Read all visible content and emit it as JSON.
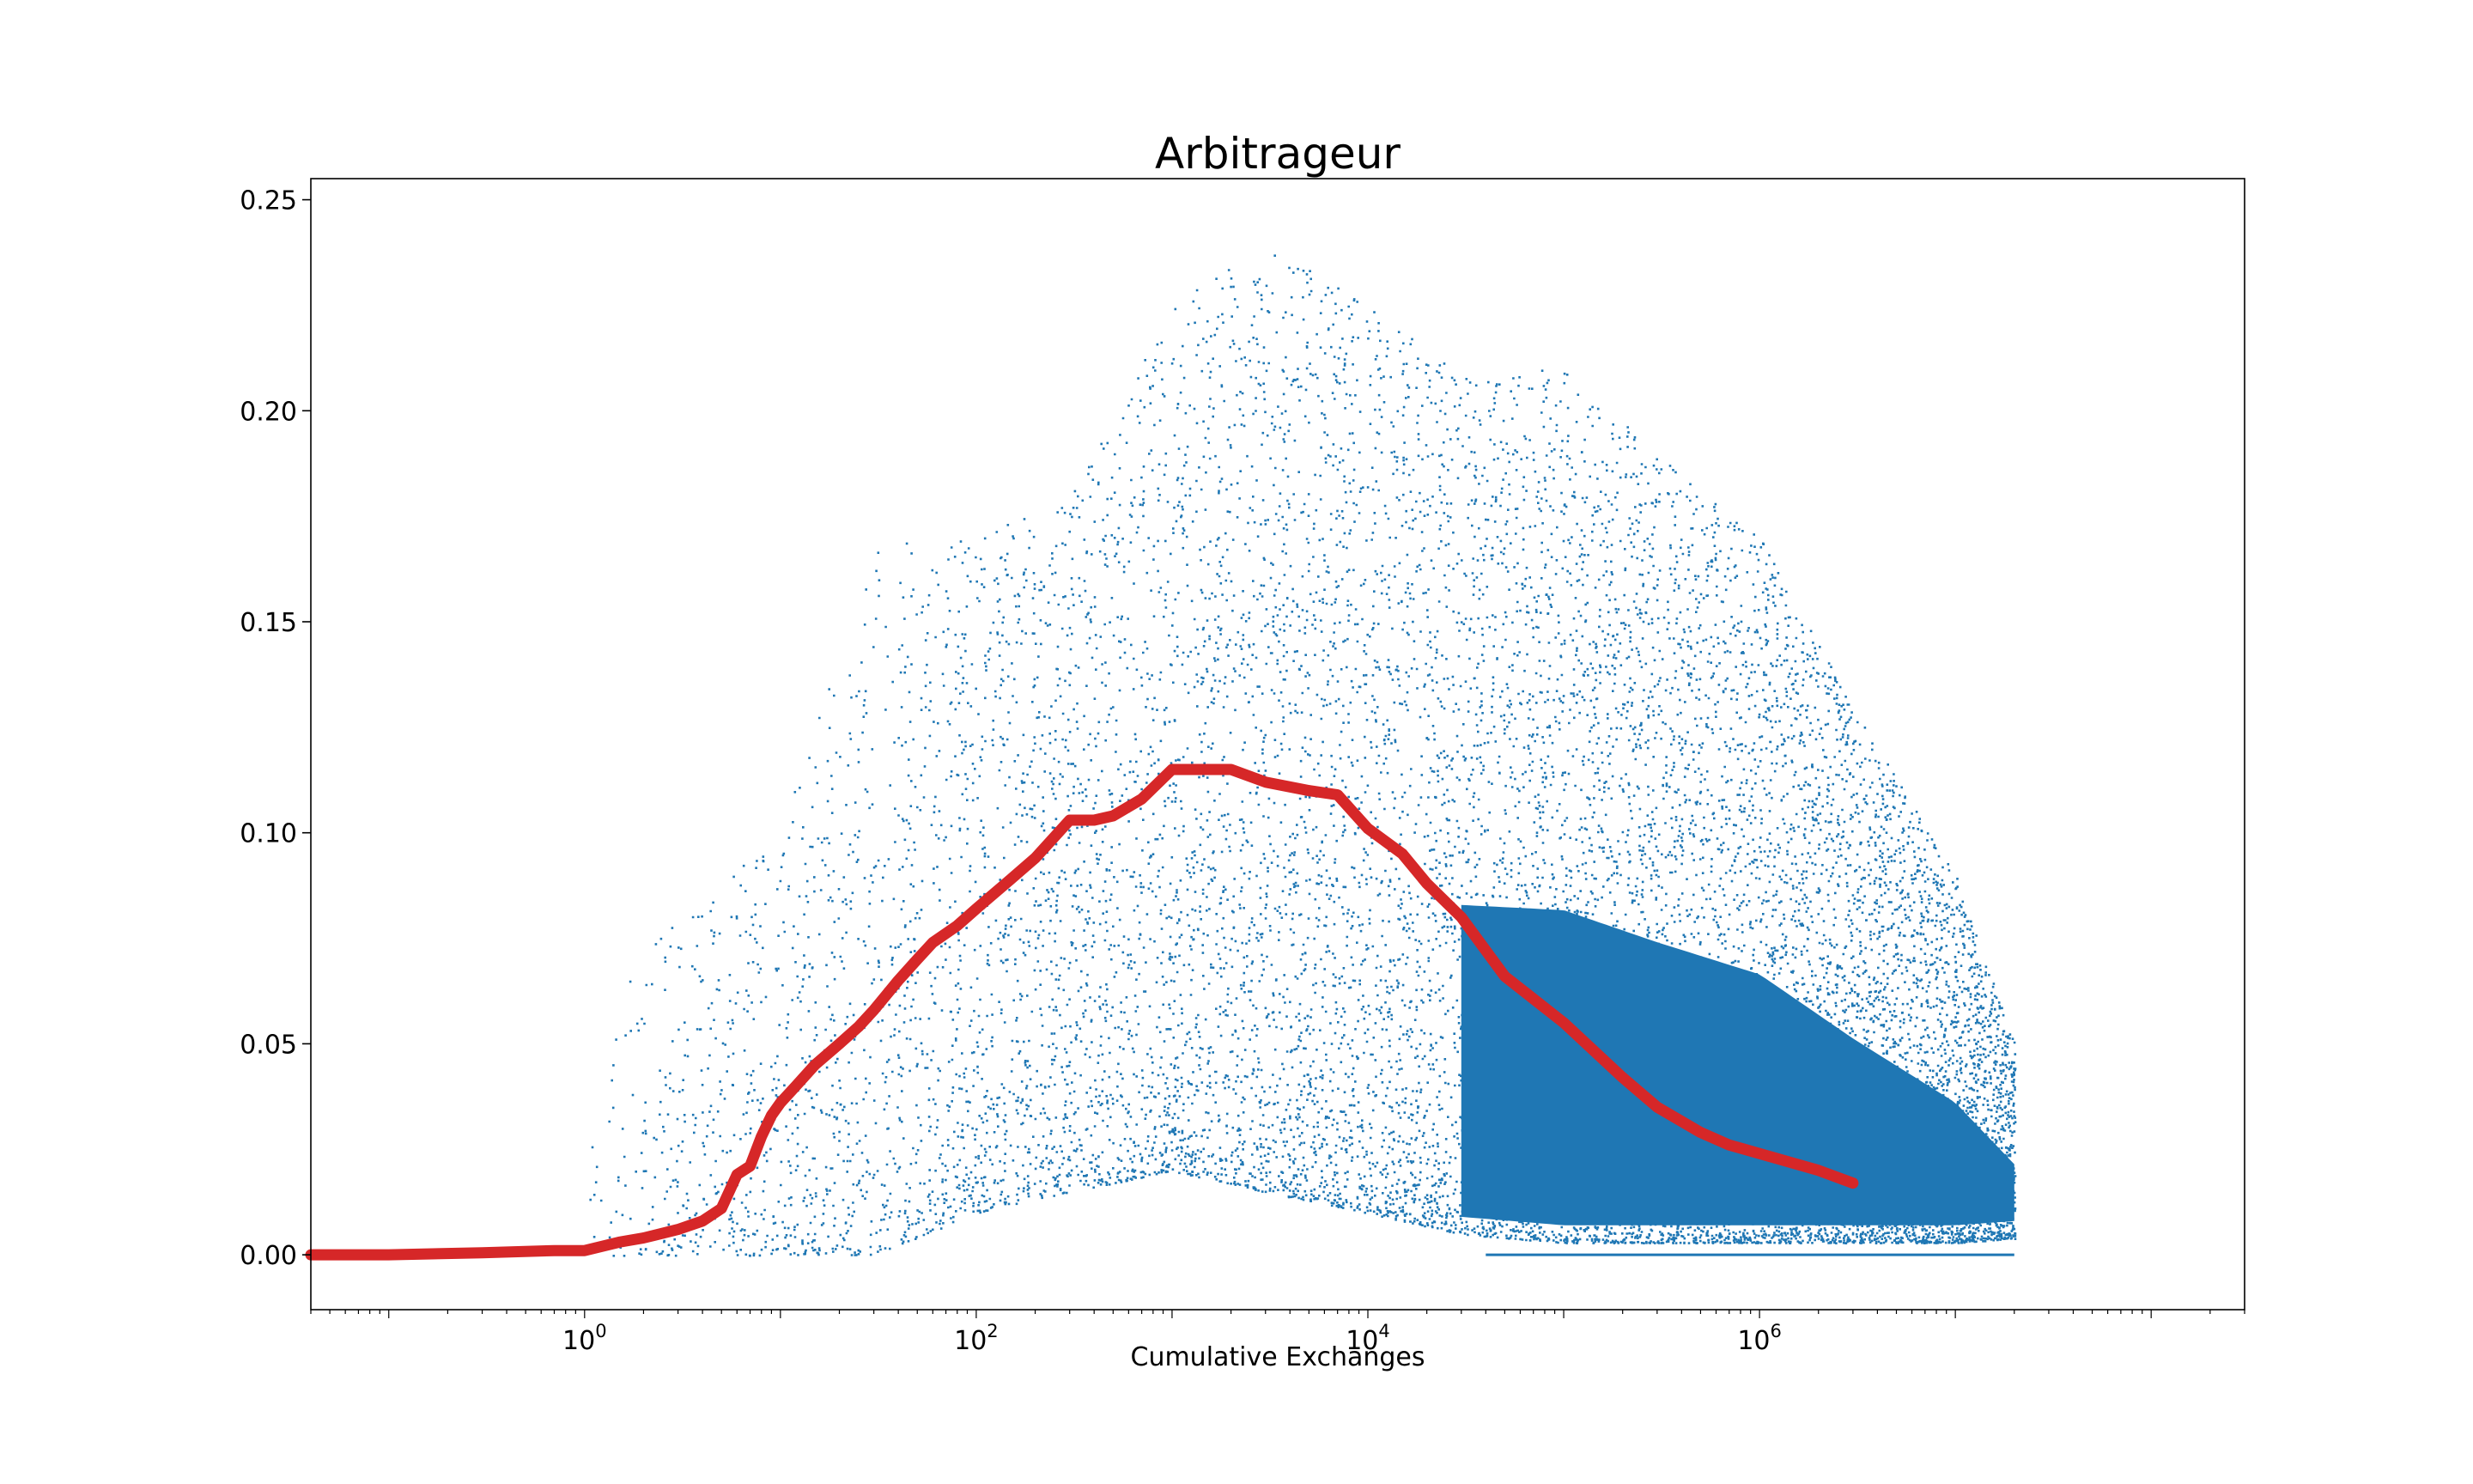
{
  "chart_data": {
    "type": "scatter",
    "title": "Arbitrageur",
    "xlabel": "Cumulative Exchanges",
    "ylabel": "",
    "xscale": "log",
    "xlim": [
      0.04,
      300000000
    ],
    "ylim": [
      -0.013,
      0.255
    ],
    "grid": false,
    "x_ticks": [
      {
        "value": 1,
        "base": "10",
        "exp": "0"
      },
      {
        "value": 100,
        "base": "10",
        "exp": "2"
      },
      {
        "value": 10000,
        "base": "10",
        "exp": "4"
      },
      {
        "value": 1000000,
        "base": "10",
        "exp": "6"
      }
    ],
    "y_ticks": [
      {
        "value": 0.0,
        "label": "0.00"
      },
      {
        "value": 0.05,
        "label": "0.05"
      },
      {
        "value": 0.1,
        "label": "0.10"
      },
      {
        "value": 0.15,
        "label": "0.15"
      },
      {
        "value": 0.2,
        "label": "0.20"
      },
      {
        "value": 0.25,
        "label": "0.25"
      }
    ],
    "colors": {
      "scatter": "#1f77b4",
      "trend": "#d62728"
    },
    "series": [
      {
        "kind": "scatter",
        "envelope": [
          {
            "x": 1,
            "low": 0.0,
            "high": 0.06
          },
          {
            "x": 3,
            "low": 0.0,
            "high": 0.08
          },
          {
            "x": 10,
            "low": 0.0,
            "high": 0.1
          },
          {
            "x": 30,
            "low": 0.0,
            "high": 0.17
          },
          {
            "x": 100,
            "low": 0.01,
            "high": 0.17
          },
          {
            "x": 300,
            "low": 0.015,
            "high": 0.18
          },
          {
            "x": 1000,
            "low": 0.02,
            "high": 0.225
          },
          {
            "x": 3000,
            "low": 0.015,
            "high": 0.24
          },
          {
            "x": 10000,
            "low": 0.01,
            "high": 0.225
          },
          {
            "x": 30000,
            "low": 0.005,
            "high": 0.21
          },
          {
            "x": 100000,
            "low": 0.003,
            "high": 0.21
          },
          {
            "x": 300000,
            "low": 0.003,
            "high": 0.19
          },
          {
            "x": 1000000,
            "low": 0.003,
            "high": 0.17
          },
          {
            "x": 3000000,
            "low": 0.003,
            "high": 0.13
          },
          {
            "x": 10000000,
            "low": 0.003,
            "high": 0.09
          },
          {
            "x": 20000000,
            "low": 0.004,
            "high": 0.05
          }
        ],
        "zero_floor_from_x": 40000,
        "zero_floor_to_x": 20000000
      },
      {
        "kind": "line",
        "x": [
          0.04,
          0.1,
          0.3,
          0.7,
          1,
          1.5,
          2,
          3,
          4,
          5,
          6,
          7,
          8,
          9,
          10,
          12,
          15,
          20,
          25,
          30,
          40,
          50,
          60,
          80,
          100,
          150,
          200,
          300,
          400,
          500,
          700,
          1000,
          1500,
          2000,
          3000,
          5000,
          7000,
          10000,
          15000,
          20000,
          30000,
          50000,
          100000,
          200000,
          300000,
          500000,
          700000,
          1000000,
          2000000,
          3000000
        ],
        "y": [
          0.0,
          0.0,
          0.0005,
          0.001,
          0.001,
          0.003,
          0.004,
          0.006,
          0.008,
          0.011,
          0.019,
          0.021,
          0.028,
          0.033,
          0.036,
          0.04,
          0.045,
          0.05,
          0.054,
          0.058,
          0.065,
          0.07,
          0.074,
          0.078,
          0.082,
          0.089,
          0.094,
          0.103,
          0.103,
          0.104,
          0.108,
          0.115,
          0.115,
          0.115,
          0.112,
          0.11,
          0.109,
          0.101,
          0.095,
          0.088,
          0.08,
          0.066,
          0.055,
          0.042,
          0.035,
          0.029,
          0.026,
          0.024,
          0.02,
          0.017
        ]
      }
    ]
  }
}
